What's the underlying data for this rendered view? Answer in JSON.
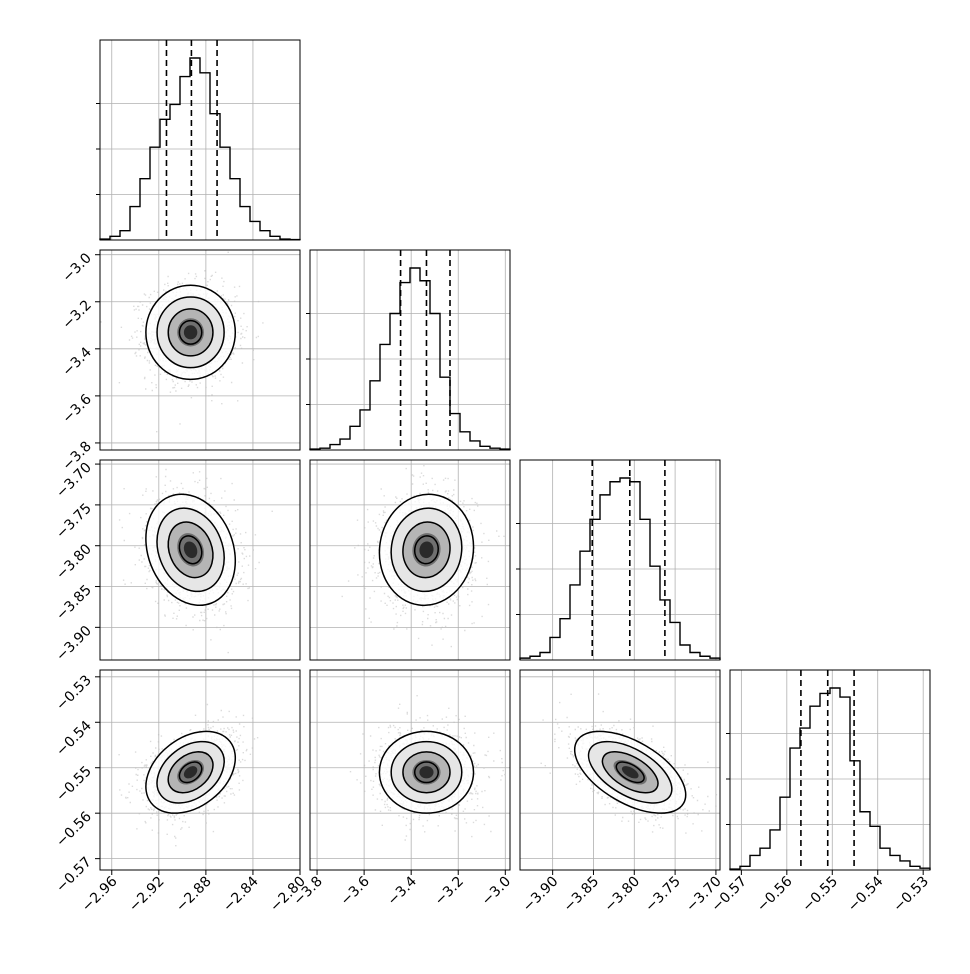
{
  "chart_data": {
    "type": "corner",
    "parameters": [
      {
        "range": [
          -2.97,
          -2.8
        ],
        "ticks": [
          -2.96,
          -2.92,
          -2.88,
          -2.84,
          -2.8
        ],
        "tick_labels": [
          "−2.96",
          "−2.92",
          "−2.88",
          "−2.84",
          "−2.80"
        ],
        "quantiles": [
          -2.9135,
          -2.8923,
          -2.8705
        ],
        "hist": [
          0.005,
          0.02,
          0.05,
          0.18,
          0.33,
          0.5,
          0.65,
          0.73,
          0.88,
          0.98,
          0.9,
          0.68,
          0.5,
          0.33,
          0.18,
          0.1,
          0.05,
          0.02,
          0.005,
          0.002
        ]
      },
      {
        "range": [
          -3.83,
          -2.98
        ],
        "ticks": [
          -3.8,
          -3.6,
          -3.4,
          -3.2,
          -3.0
        ],
        "tick_labels": [
          "−3.8",
          "−3.6",
          "−3.4",
          "−3.2",
          "−3.0"
        ],
        "quantiles": [
          -3.445,
          -3.335,
          -3.235
        ],
        "hist": [
          0.005,
          0.01,
          0.03,
          0.06,
          0.13,
          0.22,
          0.38,
          0.58,
          0.75,
          0.92,
          1.0,
          0.93,
          0.75,
          0.4,
          0.2,
          0.1,
          0.05,
          0.02,
          0.01,
          0.005
        ]
      },
      {
        "range": [
          -3.94,
          -3.695
        ],
        "ticks": [
          -3.9,
          -3.85,
          -3.8,
          -3.75,
          -3.7
        ],
        "tick_labels": [
          "−3.90",
          "−3.85",
          "−3.80",
          "−3.75",
          "−3.70"
        ],
        "quantiles": [
          -3.8515,
          -3.8055,
          -3.7625
        ],
        "hist": [
          0.01,
          0.02,
          0.04,
          0.12,
          0.22,
          0.4,
          0.58,
          0.75,
          0.88,
          0.95,
          0.97,
          0.95,
          0.75,
          0.5,
          0.32,
          0.2,
          0.08,
          0.04,
          0.02,
          0.01
        ]
      },
      {
        "range": [
          -0.5725,
          -0.5285
        ],
        "ticks": [
          -0.57,
          -0.56,
          -0.55,
          -0.54,
          -0.53
        ],
        "tick_labels": [
          "−0.57",
          "−0.56",
          "−0.55",
          "−0.54",
          "−0.53"
        ],
        "quantiles": [
          -0.5569,
          -0.551,
          -0.5452
        ],
        "hist": [
          0.005,
          0.02,
          0.08,
          0.12,
          0.22,
          0.4,
          0.67,
          0.78,
          0.9,
          0.97,
          1.0,
          0.95,
          0.6,
          0.32,
          0.24,
          0.12,
          0.08,
          0.05,
          0.02,
          0.01
        ]
      }
    ],
    "pairs": [
      {
        "x": 0,
        "y": 1,
        "center": [
          -2.893,
          -3.33
        ],
        "sd": [
          0.019,
          0.1
        ],
        "rho": 0.0
      },
      {
        "x": 0,
        "y": 2,
        "center": [
          -2.893,
          -3.805
        ],
        "sd": [
          0.019,
          0.034
        ],
        "rho": -0.2
      },
      {
        "x": 1,
        "y": 2,
        "center": [
          -3.335,
          -3.805
        ],
        "sd": [
          0.1,
          0.034
        ],
        "rho": 0.05
      },
      {
        "x": 0,
        "y": 3,
        "center": [
          -2.893,
          -0.551
        ],
        "sd": [
          0.019,
          0.0045
        ],
        "rho": 0.35
      },
      {
        "x": 1,
        "y": 3,
        "center": [
          -3.335,
          -0.551
        ],
        "sd": [
          0.1,
          0.0045
        ],
        "rho": 0.0
      },
      {
        "x": 2,
        "y": 3,
        "center": [
          -3.805,
          -0.551
        ],
        "sd": [
          0.034,
          0.0045
        ],
        "rho": -0.55
      }
    ],
    "contour_levels_sigma": [
      0.5,
      1.0,
      1.5,
      2.0
    ],
    "grid": true,
    "colors": {
      "hist_line": "#000000",
      "contour": "#000000",
      "points": "#bdbdbd",
      "density": "#000000",
      "grid": "#b0b0b0"
    }
  }
}
